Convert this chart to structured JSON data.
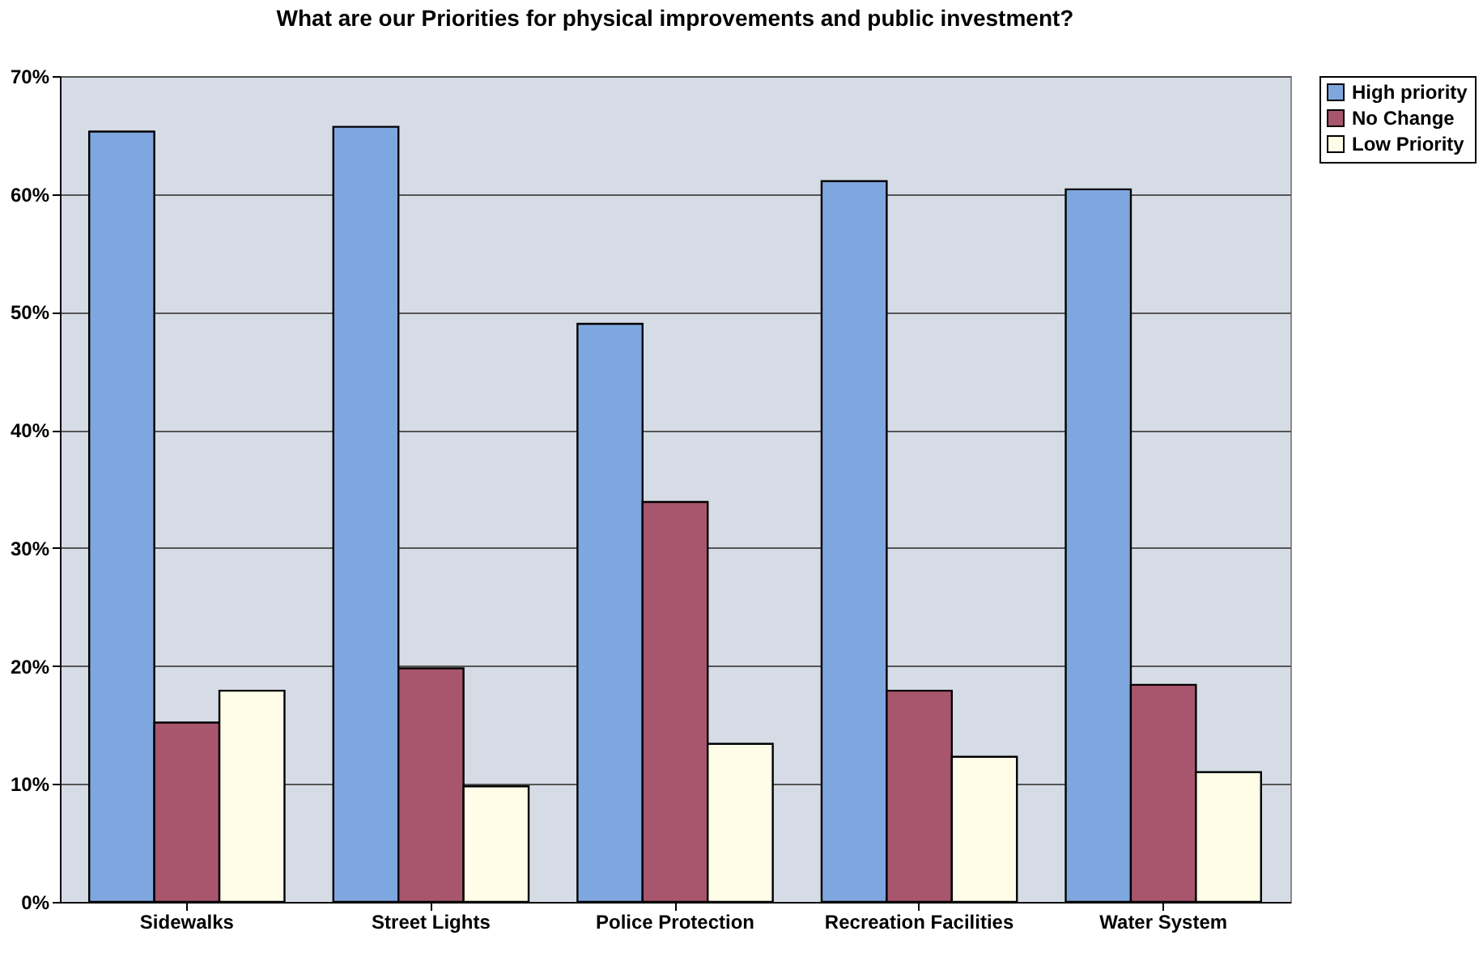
{
  "chart_data": {
    "type": "bar",
    "title": "What are our Priorities for physical improvements and public investment?",
    "categories": [
      "Sidewalks",
      "Street Lights",
      "Police Protection",
      "Recreation Facilities",
      "Water System"
    ],
    "series": [
      {
        "name": "High priority",
        "color": "#7fa7df",
        "values": [
          65.3,
          65.7,
          49.0,
          61.1,
          60.4
        ]
      },
      {
        "name": "No Change",
        "color": "#a8566e",
        "values": [
          15.2,
          19.8,
          33.9,
          17.9,
          18.4
        ]
      },
      {
        "name": "Low Priority",
        "color": "#fffde8",
        "values": [
          17.9,
          9.8,
          13.4,
          12.3,
          11.0
        ]
      }
    ],
    "ylim": [
      0,
      70
    ],
    "yticks": [
      {
        "value": 0,
        "label": "0%"
      },
      {
        "value": 10,
        "label": "10%"
      },
      {
        "value": 20,
        "label": "20%"
      },
      {
        "value": 30,
        "label": "30%"
      },
      {
        "value": 40,
        "label": "40%"
      },
      {
        "value": 50,
        "label": "50%"
      },
      {
        "value": 60,
        "label": "60%"
      },
      {
        "value": 70,
        "label": "70%"
      }
    ],
    "grid": "y",
    "legend": "right"
  }
}
